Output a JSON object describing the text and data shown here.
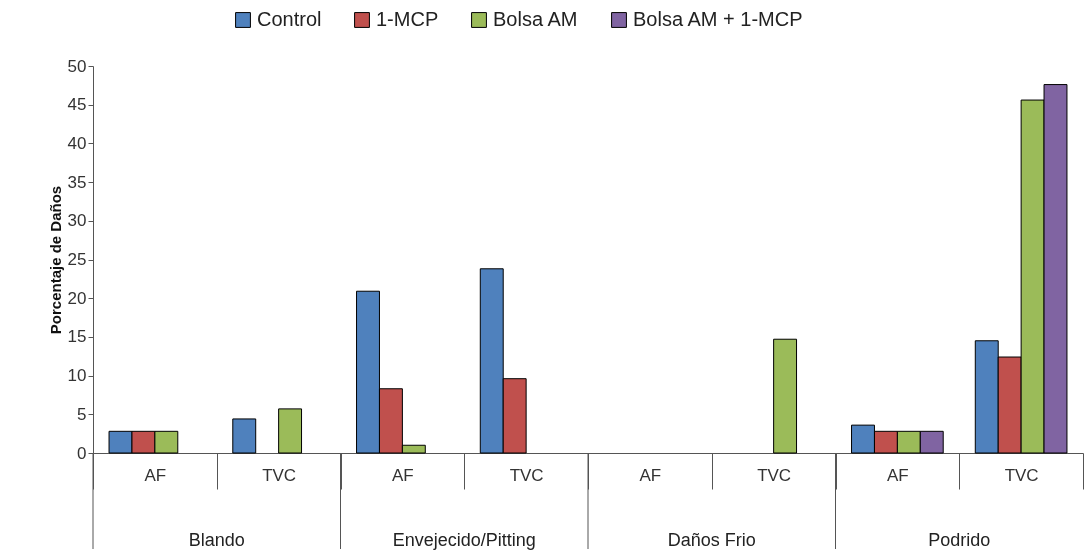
{
  "chart_data": {
    "type": "bar",
    "ylabel": "Porcentaje de Daños",
    "categories": [
      "AF",
      "TVC",
      "AF",
      "TVC",
      "AF",
      "TVC",
      "AF",
      "TVC"
    ],
    "annotations": [
      "Blando",
      "Envejecido/Pitting",
      "Daños Frio",
      "Podrido"
    ],
    "series": [
      {
        "name": "Control",
        "color": "#4f81bd",
        "values": [
          2.8,
          4.4,
          20.9,
          23.8,
          null,
          null,
          3.6,
          14.5
        ]
      },
      {
        "name": "1-MCP",
        "color": "#c0504d",
        "values": [
          2.8,
          null,
          8.3,
          9.6,
          null,
          null,
          2.8,
          12.4
        ]
      },
      {
        "name": "Bolsa AM",
        "color": "#9bbb59",
        "values": [
          2.8,
          5.7,
          1.0,
          null,
          null,
          14.7,
          2.8,
          45.6
        ]
      },
      {
        "name": "Bolsa AM + 1-MCP",
        "color": "#8064a2",
        "values": [
          null,
          null,
          null,
          null,
          null,
          null,
          2.8,
          47.6
        ]
      }
    ],
    "ylim": [
      0,
      50
    ],
    "yticks": [
      0,
      5,
      10,
      15,
      20,
      25,
      30,
      35,
      40,
      45,
      50
    ],
    "grid": false,
    "legend": "top"
  }
}
